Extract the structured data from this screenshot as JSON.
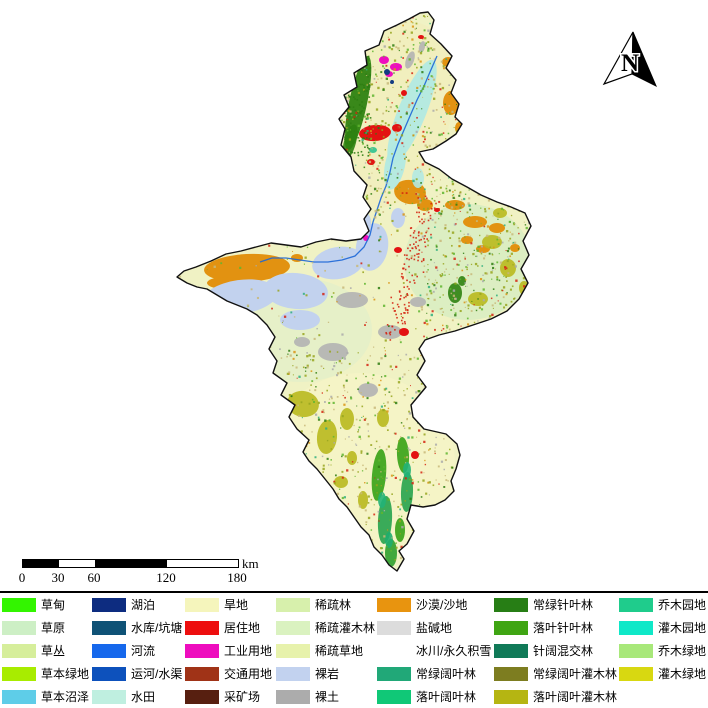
{
  "north_arrow": {
    "label": "N"
  },
  "scale_bar": {
    "tick_labels": [
      "0",
      "30",
      "60",
      "120",
      "180"
    ],
    "unit_label": "km"
  },
  "legend": {
    "columns": [
      {
        "items": [
          {
            "label": "草甸",
            "color": "#33F500"
          },
          {
            "label": "草原",
            "color": "#CDEFC5"
          },
          {
            "label": "草丛",
            "color": "#D6EE9B"
          },
          {
            "label": "草本绿地",
            "color": "#A8EC00"
          },
          {
            "label": "草本沼泽",
            "color": "#5ECDE8"
          }
        ]
      },
      {
        "items": [
          {
            "label": "湖泊",
            "color": "#0D2C80"
          },
          {
            "label": "水库/坑塘",
            "color": "#0F5276"
          },
          {
            "label": "河流",
            "color": "#1668EC"
          },
          {
            "label": "运河/水渠",
            "color": "#0D51BC"
          },
          {
            "label": "水田",
            "color": "#BFEFE0"
          }
        ]
      },
      {
        "items": [
          {
            "label": "旱地",
            "color": "#F5F5BC"
          },
          {
            "label": "居住地",
            "color": "#ED0E0E"
          },
          {
            "label": "工业用地",
            "color": "#EE0DBE"
          },
          {
            "label": "交通用地",
            "color": "#A03317"
          },
          {
            "label": "采矿场",
            "color": "#571F10"
          }
        ]
      },
      {
        "items": [
          {
            "label": "稀疏林",
            "color": "#D7F0AC"
          },
          {
            "label": "稀疏灌木林",
            "color": "#DAF2C0"
          },
          {
            "label": "稀疏草地",
            "color": "#E7F2AC"
          },
          {
            "label": "裸岩",
            "color": "#C2D2EF"
          },
          {
            "label": "裸土",
            "color": "#ACACAC"
          }
        ]
      },
      {
        "items": [
          {
            "label": "沙漠/沙地",
            "color": "#E8940F"
          },
          {
            "label": "盐碱地",
            "color": "#DCDCDC"
          },
          {
            "label": "冰川/永久积雪",
            "color": "#FFFFFF"
          },
          {
            "label": "常绿阔叶林",
            "color": "#21A878"
          },
          {
            "label": "落叶阔叶林",
            "color": "#10C877"
          }
        ]
      },
      {
        "items": [
          {
            "label": "常绿针叶林",
            "color": "#277E15"
          },
          {
            "label": "落叶针叶林",
            "color": "#3FA513"
          },
          {
            "label": "针阔混交林",
            "color": "#107A58"
          },
          {
            "label": "常绿阔叶灌木林",
            "color": "#7D7D20"
          },
          {
            "label": "落叶阔叶灌木林",
            "color": "#B5B512"
          }
        ]
      },
      {
        "items": [
          {
            "label": "乔木园地",
            "color": "#1FCC8C"
          },
          {
            "label": "灌木园地",
            "color": "#0FE8C8"
          },
          {
            "label": "乔木绿地",
            "color": "#A8E87A"
          },
          {
            "label": "灌木绿地",
            "color": "#D8D811"
          }
        ]
      }
    ]
  }
}
